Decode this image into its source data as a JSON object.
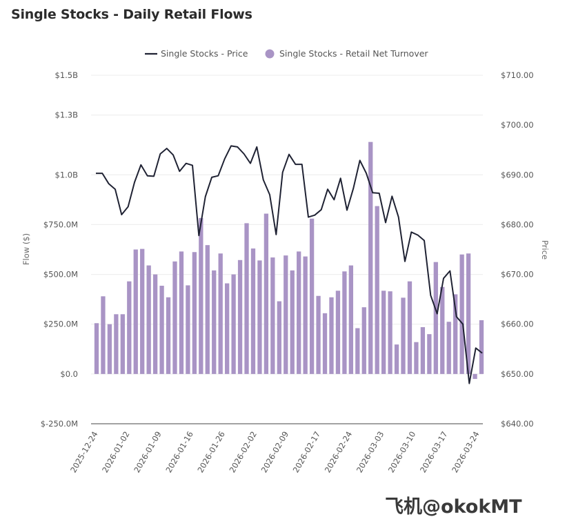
{
  "chart_data": {
    "type": "bar",
    "title": "Single Stocks -  Daily Retail Flows",
    "ylabel": "Flow ($)",
    "y2label": "Price",
    "ylim": [
      -250000000,
      1500000000
    ],
    "y2lim": [
      640,
      710
    ],
    "y_ticks": [
      -250000000,
      0,
      250000000,
      500000000,
      750000000,
      1000000000,
      1300000000,
      1500000000
    ],
    "y_tick_labels": [
      "$-250.0M",
      "$0.0",
      "$250.0M",
      "$500.0M",
      "$750.0M",
      "$1.0B",
      "$1.3B",
      "$1.5B"
    ],
    "y2_ticks": [
      640,
      650,
      660,
      670,
      680,
      690,
      700,
      710
    ],
    "y2_tick_labels": [
      "$640.00",
      "$650.00",
      "$660.00",
      "$670.00",
      "$680.00",
      "$690.00",
      "$700.00",
      "$710.00"
    ],
    "x_tick_labels": [
      "2025-12-24",
      "2026-01-02",
      "2026-01-09",
      "2026-01-16",
      "2026-01-26",
      "2026-02-02",
      "2026-02-09",
      "2026-02-17",
      "2026-02-24",
      "2026-03-03",
      "2026-03-10",
      "2026-03-17",
      "2026-03-24"
    ],
    "grid": true,
    "legend_position": "top-center",
    "series": [
      {
        "name": "Single Stocks - Price",
        "type": "line",
        "axis": "right",
        "color": "#1f2233",
        "values": [
          690.3,
          690.3,
          688.2,
          687.1,
          682.0,
          683.6,
          688.5,
          692.0,
          689.8,
          689.7,
          694.2,
          695.3,
          694.0,
          690.7,
          692.3,
          691.9,
          677.8,
          685.6,
          689.5,
          689.8,
          693.2,
          695.8,
          695.6,
          694.2,
          692.3,
          695.6,
          689.0,
          686.0,
          678.0,
          690.5,
          694.1,
          692.1,
          692.1,
          681.5,
          681.9,
          683.0,
          687.1,
          685.0,
          689.3,
          682.9,
          687.3,
          692.9,
          690.3,
          686.4,
          686.3,
          680.4,
          685.7,
          681.5,
          672.6,
          678.5,
          677.9,
          676.8,
          665.8,
          662.1,
          669.2,
          670.7,
          661.5,
          660.0,
          648.1,
          655.2,
          654.2
        ]
      },
      {
        "name": "Single Stocks - Retail Net Turnover",
        "type": "bar",
        "axis": "left",
        "color": "#a994c5",
        "values": [
          255000000,
          390000000,
          250000000,
          300000000,
          300000000,
          465000000,
          625000000,
          628000000,
          545000000,
          500000000,
          443000000,
          385000000,
          565000000,
          615000000,
          445000000,
          612000000,
          783000000,
          647000000,
          520000000,
          605000000,
          455000000,
          500000000,
          572000000,
          757000000,
          630000000,
          570000000,
          805000000,
          585000000,
          365000000,
          595000000,
          520000000,
          615000000,
          590000000,
          780000000,
          392000000,
          305000000,
          385000000,
          418000000,
          515000000,
          545000000,
          230000000,
          335000000,
          1165000000,
          843000000,
          418000000,
          415000000,
          148000000,
          383000000,
          465000000,
          160000000,
          235000000,
          200000000,
          562000000,
          437000000,
          262000000,
          400000000,
          600000000,
          605000000,
          -25000000,
          270000000
        ]
      }
    ]
  },
  "legend": {
    "price_label": "Single Stocks - Price",
    "flow_label": "Single Stocks - Retail Net Turnover"
  },
  "watermark": {
    "text": "飞机@okokMT"
  }
}
